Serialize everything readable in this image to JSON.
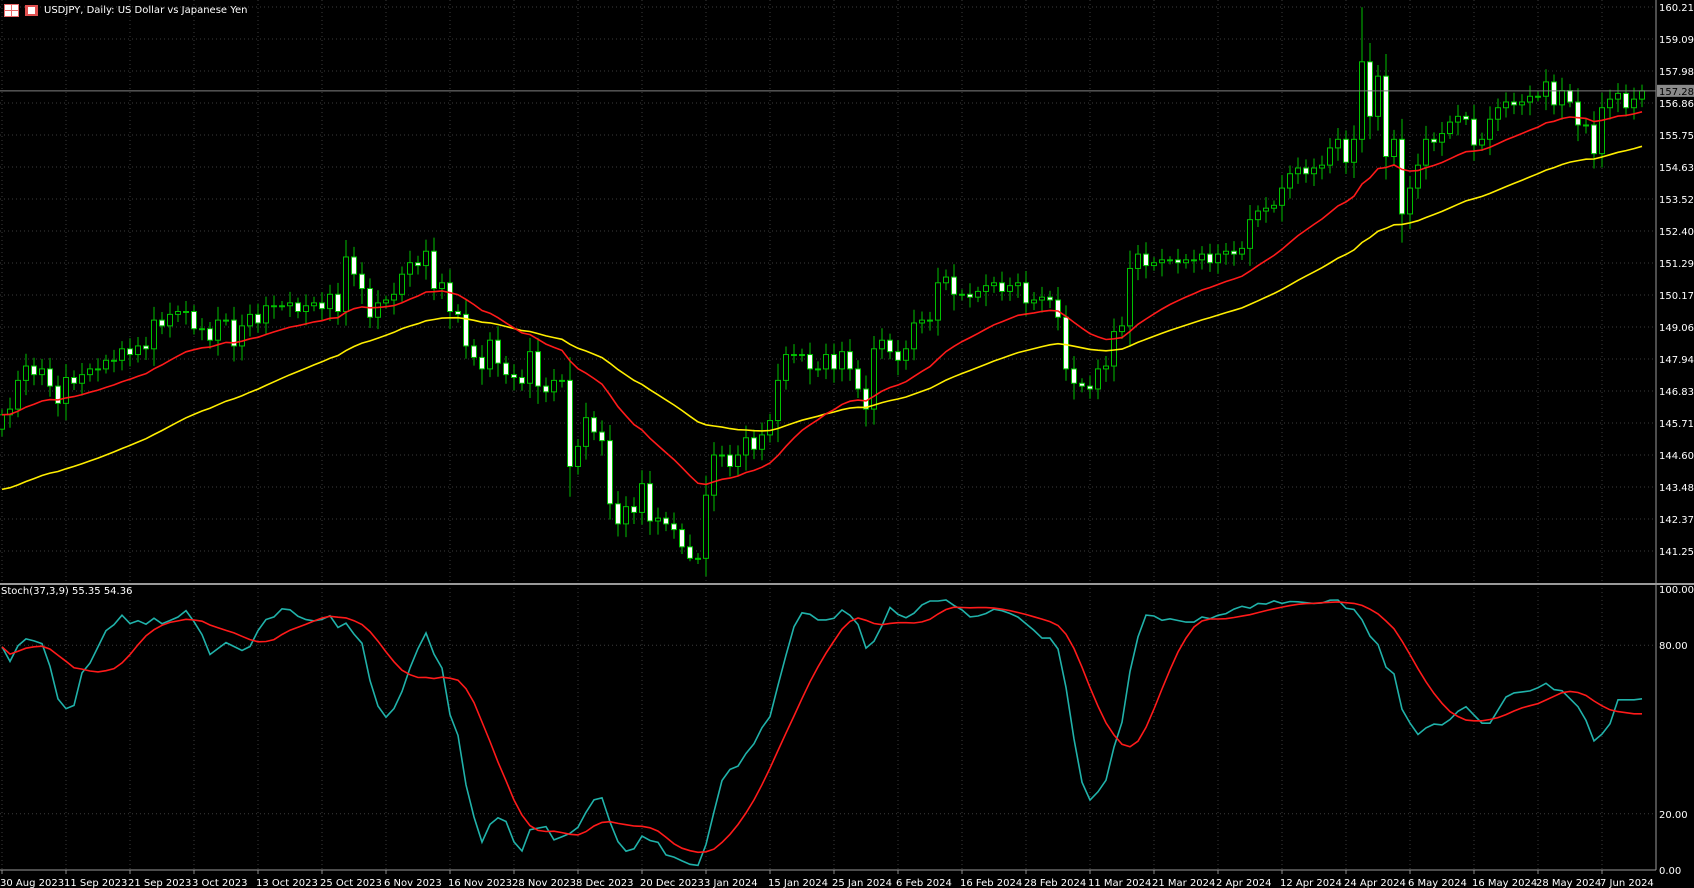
{
  "title": {
    "text": "USDJPY, Daily:  US Dollar vs Japanese Yen",
    "icons": [
      "chart-window-icon",
      "chart-type-icon"
    ]
  },
  "colors": {
    "background": "#000000",
    "grid": "#3c3c3c",
    "bull_outline": "#00c000",
    "bull_body": "#000000",
    "bear_body": "#ffffff",
    "ma_fast": "#ff1a1a",
    "ma_slow": "#ffee00",
    "stoch_main": "#20b2aa",
    "stoch_signal": "#ff1a1a",
    "axis_text": "#ffffff",
    "price_line": "#808080"
  },
  "price_axis": {
    "labels": [
      "160.210",
      "159.095",
      "157.980",
      "156.865",
      "155.750",
      "154.635",
      "153.520",
      "152.405",
      "151.290",
      "150.175",
      "149.060",
      "147.945",
      "146.830",
      "145.715",
      "144.600",
      "143.485",
      "142.370",
      "141.255"
    ],
    "current_price": "157.289"
  },
  "stoch": {
    "label": "Stoch(37,3,9) 55.35 54.36",
    "params": [
      37,
      3,
      9
    ],
    "axis_labels": [
      "100.00",
      "80.00",
      "20.00",
      "0.00"
    ],
    "levels": [
      100,
      80,
      20,
      0
    ]
  },
  "moving_averages": {
    "fast_period": 21,
    "slow_period": 50
  },
  "date_axis": {
    "labels": [
      "30 Aug 2023",
      "11 Sep 2023",
      "21 Sep 2023",
      "3 Oct 2023",
      "13 Oct 2023",
      "25 Oct 2023",
      "6 Nov 2023",
      "16 Nov 2023",
      "28 Nov 2023",
      "8 Dec 2023",
      "20 Dec 2023",
      "3 Jan 2024",
      "15 Jan 2024",
      "25 Jan 2024",
      "6 Feb 2024",
      "16 Feb 2024",
      "28 Feb 2024",
      "11 Mar 2024",
      "21 Mar 2024",
      "2 Apr 2024",
      "12 Apr 2024",
      "24 Apr 2024",
      "6 May 2024",
      "16 May 2024",
      "28 May 2024",
      "7 Jun 2024"
    ],
    "bars_per_label": 8
  },
  "chart_data": {
    "type": "candlestick",
    "symbol": "USDJPY",
    "timeframe": "Daily",
    "ylim": [
      140.7,
      160.5
    ],
    "closes": [
      146.0,
      146.2,
      147.2,
      147.7,
      147.4,
      147.6,
      147.0,
      146.4,
      147.3,
      147.1,
      147.4,
      147.6,
      147.6,
      147.9,
      147.9,
      148.3,
      148.1,
      148.4,
      148.3,
      149.3,
      149.1,
      149.5,
      149.6,
      149.6,
      149.0,
      149.0,
      148.6,
      149.3,
      149.3,
      148.4,
      149.1,
      149.5,
      149.2,
      149.8,
      149.8,
      149.8,
      149.9,
      149.6,
      149.8,
      149.9,
      149.7,
      150.2,
      149.6,
      151.5,
      150.9,
      150.4,
      149.4,
      149.9,
      150.0,
      150.2,
      150.9,
      151.3,
      151.2,
      151.7,
      150.4,
      150.6,
      149.6,
      149.5,
      148.4,
      148.0,
      147.6,
      148.6,
      147.8,
      147.4,
      147.3,
      147.1,
      148.2,
      147.0,
      146.8,
      147.2,
      147.2,
      144.2,
      144.9,
      145.9,
      145.4,
      145.1,
      142.9,
      142.2,
      142.8,
      142.6,
      143.6,
      142.3,
      142.4,
      142.2,
      142.0,
      141.4,
      141.0,
      141.0,
      143.2,
      144.6,
      144.6,
      144.2,
      144.6,
      145.2,
      144.8,
      145.3,
      145.8,
      147.2,
      148.1,
      148.1,
      148.1,
      147.6,
      147.6,
      148.1,
      147.6,
      148.2,
      147.6,
      146.9,
      146.2,
      148.3,
      148.6,
      148.2,
      147.9,
      148.3,
      149.2,
      149.3,
      149.3,
      150.6,
      150.8,
      150.2,
      150.2,
      150.1,
      150.3,
      150.5,
      150.6,
      150.3,
      150.5,
      150.6,
      149.9,
      150.0,
      150.1,
      150.0,
      149.4,
      147.6,
      147.1,
      147.0,
      146.9,
      147.6,
      147.7,
      148.9,
      149.1,
      151.1,
      151.6,
      151.2,
      151.3,
      151.4,
      151.4,
      151.3,
      151.4,
      151.4,
      151.6,
      151.3,
      151.6,
      151.7,
      151.6,
      151.8,
      152.8,
      153.1,
      153.2,
      153.3,
      153.9,
      154.4,
      154.6,
      154.4,
      154.6,
      154.7,
      155.3,
      155.6,
      154.8,
      155.6,
      158.3,
      156.4,
      157.8,
      155.0,
      155.6,
      153.0,
      153.9,
      154.7,
      155.6,
      155.5,
      155.8,
      156.2,
      156.4,
      156.3,
      155.4,
      155.6,
      156.3,
      156.7,
      156.9,
      156.8,
      156.9,
      157.1,
      157.1,
      157.6,
      156.8,
      157.3,
      156.9,
      156.1,
      156.1,
      155.1,
      156.7,
      157.0,
      157.2,
      156.7,
      157.0,
      157.289
    ],
    "first_open": 145.5,
    "indicators": [
      "MA fast",
      "MA slow",
      "Stochastic"
    ]
  }
}
